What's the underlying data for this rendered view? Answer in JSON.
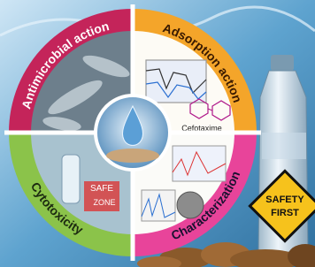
{
  "quadrants": {
    "top_left": "Antimicrobial action",
    "top_right": "Adsorption action",
    "bottom_left": "Cytotoxicity",
    "bottom_right": "Characterization"
  },
  "molecule": "Cefotaxime",
  "safe_zone": {
    "line1": "SAFE",
    "line2": "ZONE"
  },
  "sign": {
    "line1": "SAFETY",
    "line2": "FIRST"
  }
}
